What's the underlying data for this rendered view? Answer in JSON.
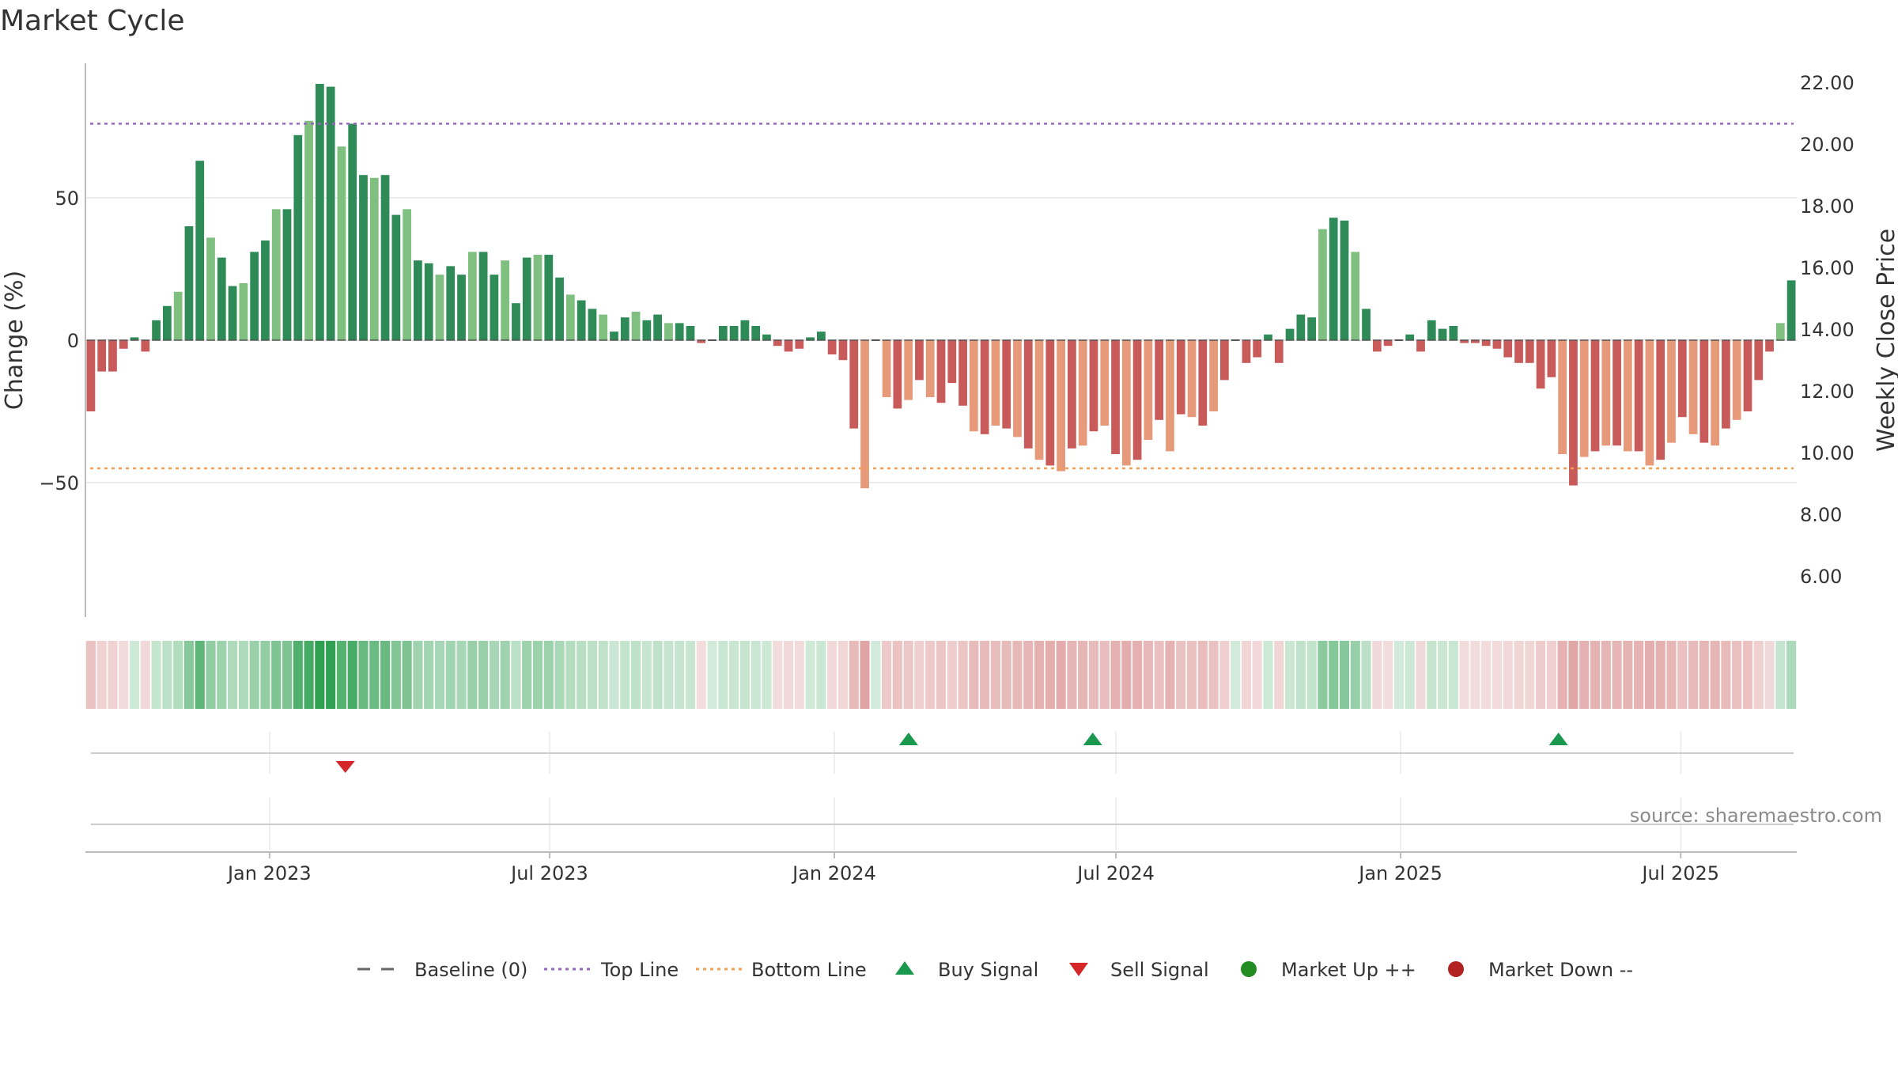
{
  "title": "Market Cycle",
  "source": "source: sharemaestro.com",
  "colors": {
    "strong_up": "#2e8b57",
    "weak_up": "#7fbf7f",
    "strong_down": "#c85a5a",
    "weak_down": "#e69a7a",
    "top_line": "#9467bd",
    "bottom_line": "#f0a050",
    "buy": "#1a9850",
    "sell": "#d62728",
    "market_up": "#228b22",
    "market_down": "#b22222",
    "grid": "#e5e5e5",
    "axis": "#bbbbbb"
  },
  "legend": [
    {
      "label": "Baseline (0)",
      "icon": "dash-line"
    },
    {
      "label": "Top Line",
      "icon": "dotted-purple-line"
    },
    {
      "label": "Bottom Line",
      "icon": "dotted-orange-line"
    },
    {
      "label": "Buy Signal",
      "icon": "triangle-up-green"
    },
    {
      "label": "Sell Signal",
      "icon": "triangle-down-red"
    },
    {
      "label": "Market Up ++",
      "icon": "circle-green"
    },
    {
      "label": "Market Down --",
      "icon": "circle-red"
    }
  ],
  "chart_data": {
    "type": "bar",
    "title": "Market Cycle",
    "ylabel": "Change (%)",
    "y2label": "Weekly Close Price",
    "ylim": [
      -98,
      98
    ],
    "y2lim": [
      4.5,
      23.0
    ],
    "yticks": [
      -50,
      0,
      50
    ],
    "yticks_labels": [
      "−50",
      "0",
      "50"
    ],
    "y2ticks": [
      "6.00",
      "8.00",
      "10.00",
      "12.00",
      "14.00",
      "16.00",
      "18.00",
      "20.00",
      "22.00"
    ],
    "top_line": 76,
    "bottom_line": -45,
    "x_start": "2022-09-04",
    "x_end": "2025-09-14",
    "xticks": [
      {
        "date": "2023-01-01",
        "label": "Jan 2023"
      },
      {
        "date": "2023-07-01",
        "label": "Jul 2023"
      },
      {
        "date": "2024-01-01",
        "label": "Jan 2024"
      },
      {
        "date": "2024-07-01",
        "label": "Jul 2024"
      },
      {
        "date": "2025-01-01",
        "label": "Jan 2025"
      },
      {
        "date": "2025-07-01",
        "label": "Jul 2025"
      }
    ],
    "first_week": "2022-09-04",
    "week_step_days": 7,
    "values": [
      -25,
      -11,
      -11,
      -3,
      1,
      -4,
      7,
      12,
      17,
      40,
      63,
      36,
      29,
      19,
      20,
      31,
      35,
      46,
      46,
      72,
      77,
      90,
      89,
      68,
      76,
      58,
      57,
      58,
      44,
      46,
      28,
      27,
      23,
      26,
      23,
      31,
      31,
      23,
      28,
      13,
      29,
      30,
      30,
      22,
      16,
      14,
      11,
      9,
      3,
      8,
      10,
      7,
      9,
      6,
      6,
      5,
      -1,
      0,
      5,
      5,
      7,
      5,
      2,
      -2,
      -4,
      -3,
      1,
      3,
      -5,
      -7,
      -31,
      -52,
      0,
      -20,
      -24,
      -21,
      -14,
      -20,
      -22,
      -15,
      -23,
      -32,
      -33,
      -30,
      -31,
      -34,
      -38,
      -42,
      -44,
      -46,
      -38,
      -37,
      -32,
      -30,
      -40,
      -44,
      -42,
      -35,
      -28,
      -39,
      -26,
      -27,
      -30,
      -25,
      -14,
      0,
      -8,
      -6,
      2,
      -8,
      4,
      9,
      8,
      39,
      43,
      42,
      31,
      11,
      -4,
      -2,
      0,
      2,
      -4,
      7,
      4,
      5,
      -1,
      -1,
      -2,
      -3,
      -6,
      -8,
      -8,
      -17,
      -13,
      -40,
      -51,
      -41,
      -39,
      -37,
      -37,
      -39,
      -39,
      -44,
      -42,
      -36,
      -27,
      -33,
      -36,
      -37,
      -31,
      -28,
      -25,
      -14,
      -4,
      6,
      21
    ],
    "series": [
      {
        "name": "Change (%)",
        "kind": "bar"
      }
    ],
    "buy_signals": [
      "2024-02-18",
      "2024-06-16",
      "2025-04-13"
    ],
    "sell_signals": [
      "2023-02-19"
    ],
    "grid": true,
    "legend_position": "bottom-center"
  }
}
